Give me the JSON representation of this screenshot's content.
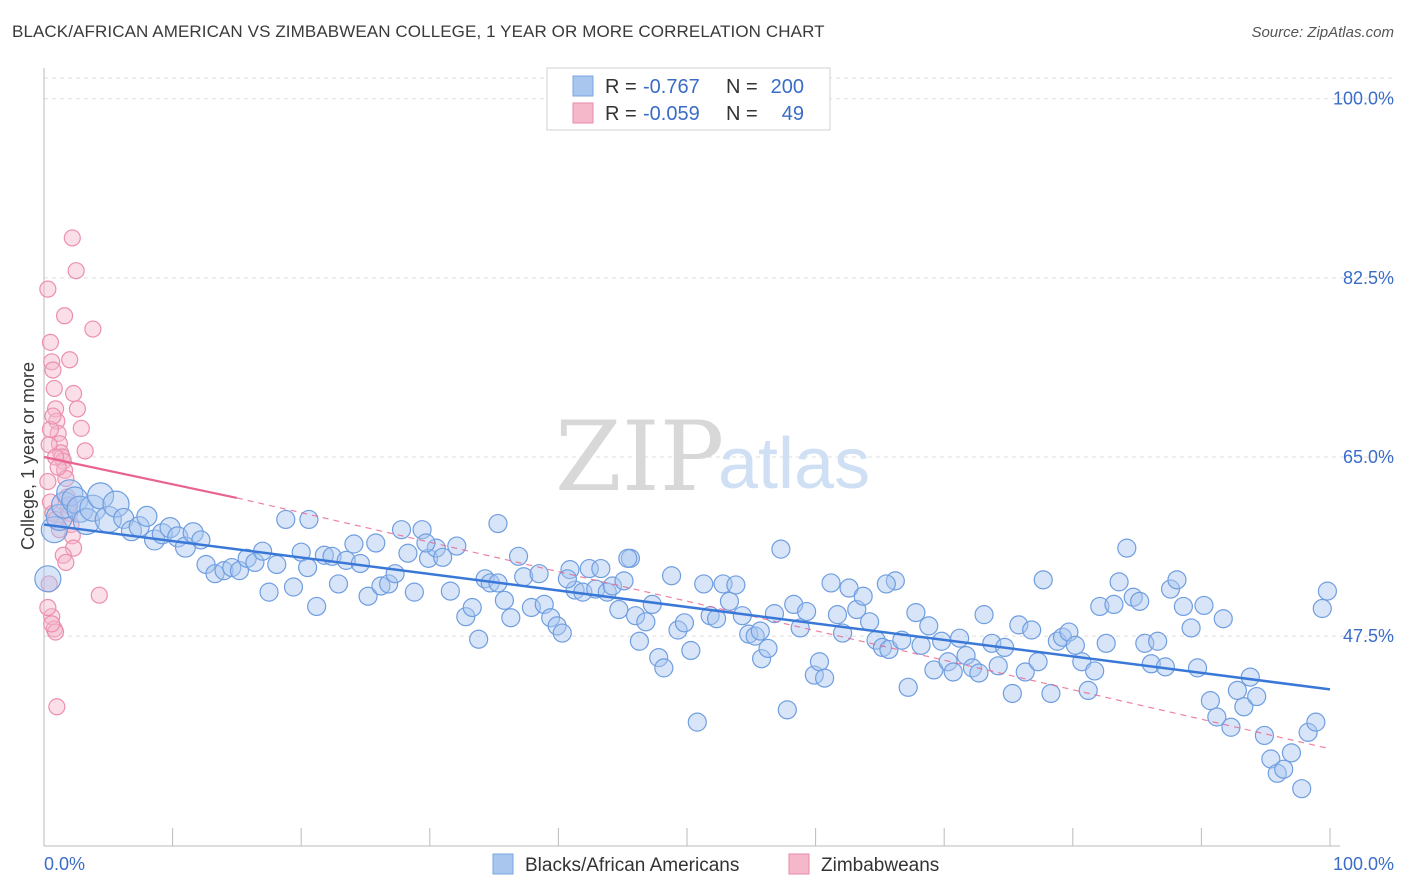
{
  "title": "BLACK/AFRICAN AMERICAN VS ZIMBABWEAN COLLEGE, 1 YEAR OR MORE CORRELATION CHART",
  "source": "Source: ZipAtlas.com",
  "watermark": {
    "part1": "ZIP",
    "part2": "atlas"
  },
  "legend": {
    "rows": [
      {
        "r_label": "R =",
        "r_value": "-0.767",
        "n_label": "N =",
        "n_value": "200",
        "color": "#a9c6ef"
      },
      {
        "r_label": "R =",
        "r_value": "-0.059",
        "n_label": "N =",
        "n_value": "49",
        "color": "#f5b8cb"
      }
    ]
  },
  "bottom_legend": [
    {
      "label": "Blacks/African Americans",
      "color": "#a9c6ef"
    },
    {
      "label": "Zimbabweans",
      "color": "#f5b8cb"
    }
  ],
  "colors": {
    "blue": "#3a78d8",
    "blue_fill": "rgba(169,198,239,0.45)",
    "pink": "#e8648e",
    "pink_fill": "rgba(245,184,203,0.45)",
    "tick": "#3a6cc8"
  },
  "chart_data": {
    "type": "scatter",
    "title": "BLACK/AFRICAN AMERICAN VS ZIMBABWEAN COLLEGE, 1 YEAR OR MORE CORRELATION CHART",
    "xlabel": "",
    "ylabel": "College, 1 year or more",
    "xlim": [
      0,
      100
    ],
    "ylim": [
      27,
      103
    ],
    "x_tick_labels": [
      "0.0%",
      "100.0%"
    ],
    "y_ticks": [
      47.5,
      65.0,
      82.5,
      100.0
    ],
    "y_tick_labels": [
      "47.5%",
      "65.0%",
      "82.5%",
      "100.0%"
    ],
    "series": [
      {
        "name": "Blacks/African Americans",
        "r": -0.767,
        "n": 200,
        "trend": {
          "x": [
            0,
            100
          ],
          "y": [
            58.4,
            42.3
          ]
        },
        "points": [
          [
            0.3,
            53.1
          ],
          [
            0.8,
            57.9
          ],
          [
            1.2,
            59.1
          ],
          [
            1.6,
            60.3
          ],
          [
            2.0,
            61.5
          ],
          [
            2.4,
            60.8
          ],
          [
            2.8,
            59.9
          ],
          [
            3.3,
            58.7
          ],
          [
            3.8,
            60.0
          ],
          [
            4.4,
            61.2
          ],
          [
            5.0,
            58.9
          ],
          [
            5.6,
            60.4
          ],
          [
            6.2,
            59.0
          ],
          [
            6.8,
            57.8
          ],
          [
            7.4,
            58.2
          ],
          [
            8.0,
            59.2
          ],
          [
            8.6,
            56.9
          ],
          [
            9.2,
            57.5
          ],
          [
            9.8,
            58.1
          ],
          [
            10.4,
            57.2
          ],
          [
            11.0,
            56.2
          ],
          [
            11.6,
            57.6
          ],
          [
            12.2,
            56.9
          ],
          [
            12.6,
            54.5
          ],
          [
            13.3,
            53.6
          ],
          [
            14.0,
            53.9
          ],
          [
            14.6,
            54.2
          ],
          [
            15.2,
            53.9
          ],
          [
            15.8,
            55.1
          ],
          [
            16.4,
            54.7
          ],
          [
            17.0,
            55.8
          ],
          [
            17.5,
            51.8
          ],
          [
            18.1,
            54.5
          ],
          [
            18.8,
            58.9
          ],
          [
            19.4,
            52.3
          ],
          [
            20.0,
            55.7
          ],
          [
            20.5,
            54.2
          ],
          [
            21.2,
            50.4
          ],
          [
            21.8,
            55.4
          ],
          [
            22.4,
            55.3
          ],
          [
            22.9,
            52.6
          ],
          [
            23.5,
            54.9
          ],
          [
            24.1,
            56.5
          ],
          [
            24.6,
            54.6
          ],
          [
            25.2,
            51.4
          ],
          [
            25.8,
            56.6
          ],
          [
            26.2,
            52.4
          ],
          [
            26.8,
            52.6
          ],
          [
            27.3,
            53.6
          ],
          [
            27.8,
            57.9
          ],
          [
            28.3,
            55.6
          ],
          [
            28.8,
            51.8
          ],
          [
            29.4,
            57.9
          ],
          [
            29.9,
            55.1
          ],
          [
            30.5,
            56.1
          ],
          [
            31.0,
            55.2
          ],
          [
            31.6,
            51.9
          ],
          [
            32.1,
            56.3
          ],
          [
            32.8,
            49.4
          ],
          [
            33.3,
            50.3
          ],
          [
            33.8,
            47.2
          ],
          [
            34.3,
            53.1
          ],
          [
            34.7,
            52.7
          ],
          [
            35.3,
            52.7
          ],
          [
            35.8,
            51.0
          ],
          [
            36.3,
            49.3
          ],
          [
            36.9,
            55.3
          ],
          [
            37.3,
            53.3
          ],
          [
            37.9,
            50.3
          ],
          [
            38.5,
            53.6
          ],
          [
            38.9,
            50.6
          ],
          [
            39.4,
            49.3
          ],
          [
            39.9,
            48.5
          ],
          [
            40.3,
            47.8
          ],
          [
            40.9,
            54.0
          ],
          [
            41.3,
            52.0
          ],
          [
            41.9,
            51.8
          ],
          [
            42.4,
            54.1
          ],
          [
            42.9,
            52.1
          ],
          [
            43.3,
            54.1
          ],
          [
            43.8,
            51.8
          ],
          [
            44.2,
            52.4
          ],
          [
            44.7,
            50.1
          ],
          [
            45.1,
            52.9
          ],
          [
            45.6,
            55.1
          ],
          [
            46.0,
            49.5
          ],
          [
            46.3,
            47.0
          ],
          [
            46.8,
            48.9
          ],
          [
            47.3,
            50.6
          ],
          [
            47.8,
            45.4
          ],
          [
            48.2,
            44.4
          ],
          [
            48.8,
            53.4
          ],
          [
            49.3,
            48.1
          ],
          [
            49.8,
            48.8
          ],
          [
            50.3,
            46.1
          ],
          [
            50.8,
            39.1
          ],
          [
            51.3,
            52.6
          ],
          [
            51.8,
            49.5
          ],
          [
            52.3,
            49.2
          ],
          [
            52.8,
            52.6
          ],
          [
            53.3,
            50.9
          ],
          [
            53.8,
            52.5
          ],
          [
            54.3,
            49.5
          ],
          [
            54.8,
            47.7
          ],
          [
            55.3,
            47.5
          ],
          [
            55.8,
            45.3
          ],
          [
            56.3,
            46.3
          ],
          [
            56.8,
            49.7
          ],
          [
            57.3,
            56.0
          ],
          [
            57.8,
            40.3
          ],
          [
            58.3,
            50.6
          ],
          [
            58.8,
            48.3
          ],
          [
            59.3,
            49.9
          ],
          [
            59.9,
            43.7
          ],
          [
            60.3,
            45.0
          ],
          [
            60.7,
            43.4
          ],
          [
            61.2,
            52.7
          ],
          [
            61.7,
            49.6
          ],
          [
            62.1,
            47.8
          ],
          [
            62.6,
            52.2
          ],
          [
            63.2,
            50.1
          ],
          [
            63.7,
            51.4
          ],
          [
            64.2,
            48.9
          ],
          [
            64.7,
            47.1
          ],
          [
            65.2,
            46.4
          ],
          [
            65.7,
            46.2
          ],
          [
            66.2,
            52.9
          ],
          [
            66.7,
            47.1
          ],
          [
            67.2,
            42.5
          ],
          [
            67.8,
            49.8
          ],
          [
            68.2,
            46.6
          ],
          [
            68.8,
            48.5
          ],
          [
            69.2,
            44.2
          ],
          [
            69.8,
            47.0
          ],
          [
            70.3,
            45.0
          ],
          [
            70.7,
            44.0
          ],
          [
            71.2,
            47.3
          ],
          [
            71.7,
            45.6
          ],
          [
            72.2,
            44.4
          ],
          [
            72.7,
            43.9
          ],
          [
            73.1,
            49.6
          ],
          [
            73.7,
            46.8
          ],
          [
            74.2,
            44.6
          ],
          [
            74.7,
            46.4
          ],
          [
            75.3,
            41.9
          ],
          [
            75.8,
            48.6
          ],
          [
            76.3,
            44.0
          ],
          [
            76.8,
            48.1
          ],
          [
            77.3,
            45.0
          ],
          [
            77.7,
            53.0
          ],
          [
            78.3,
            41.9
          ],
          [
            78.8,
            47.0
          ],
          [
            79.2,
            47.4
          ],
          [
            79.7,
            47.9
          ],
          [
            80.2,
            46.6
          ],
          [
            80.7,
            45.0
          ],
          [
            81.2,
            42.2
          ],
          [
            81.7,
            44.1
          ],
          [
            82.1,
            50.4
          ],
          [
            82.6,
            46.8
          ],
          [
            83.2,
            50.6
          ],
          [
            83.6,
            52.8
          ],
          [
            84.2,
            56.1
          ],
          [
            84.7,
            51.3
          ],
          [
            85.2,
            50.9
          ],
          [
            85.6,
            46.8
          ],
          [
            86.1,
            44.8
          ],
          [
            86.6,
            47.0
          ],
          [
            87.2,
            44.5
          ],
          [
            87.6,
            52.1
          ],
          [
            88.1,
            53.0
          ],
          [
            88.6,
            50.4
          ],
          [
            89.2,
            48.3
          ],
          [
            89.7,
            44.4
          ],
          [
            90.2,
            50.5
          ],
          [
            90.7,
            41.2
          ],
          [
            91.2,
            39.6
          ],
          [
            91.7,
            49.2
          ],
          [
            92.3,
            38.6
          ],
          [
            92.8,
            42.2
          ],
          [
            93.3,
            40.6
          ],
          [
            93.8,
            43.5
          ],
          [
            94.3,
            41.6
          ],
          [
            94.9,
            37.8
          ],
          [
            95.4,
            35.5
          ],
          [
            95.9,
            34.1
          ],
          [
            96.4,
            34.5
          ],
          [
            97.0,
            36.1
          ],
          [
            97.8,
            32.6
          ],
          [
            98.3,
            38.1
          ],
          [
            98.9,
            39.1
          ],
          [
            99.4,
            50.2
          ],
          [
            99.8,
            51.9
          ],
          [
            40.7,
            53.1
          ],
          [
            55.7,
            48.0
          ],
          [
            65.5,
            52.6
          ],
          [
            20.6,
            58.9
          ],
          [
            29.7,
            56.6
          ],
          [
            45.4,
            55.1
          ],
          [
            35.3,
            58.5
          ]
        ]
      },
      {
        "name": "Zimbabweans",
        "r": -0.059,
        "n": 49,
        "trend": {
          "x": [
            0,
            15
          ],
          "y": [
            65.0,
            61.0
          ],
          "dashed_to": {
            "x": [
              15,
              100
            ],
            "y": [
              61.0,
              36.5
            ]
          }
        },
        "points": [
          [
            0.3,
            81.4
          ],
          [
            0.5,
            76.2
          ],
          [
            0.6,
            74.3
          ],
          [
            0.7,
            73.5
          ],
          [
            0.8,
            71.7
          ],
          [
            0.9,
            69.7
          ],
          [
            1.0,
            68.5
          ],
          [
            1.1,
            67.3
          ],
          [
            1.2,
            66.3
          ],
          [
            1.3,
            65.4
          ],
          [
            1.4,
            65.0
          ],
          [
            1.5,
            64.6
          ],
          [
            1.6,
            63.7
          ],
          [
            1.7,
            62.9
          ],
          [
            1.8,
            61.1
          ],
          [
            1.9,
            60.3
          ],
          [
            2.0,
            59.5
          ],
          [
            2.1,
            58.4
          ],
          [
            2.2,
            57.3
          ],
          [
            2.3,
            56.1
          ],
          [
            0.4,
            52.6
          ],
          [
            0.6,
            49.4
          ],
          [
            0.8,
            48.2
          ],
          [
            0.9,
            47.9
          ],
          [
            1.0,
            40.6
          ],
          [
            2.0,
            74.5
          ],
          [
            2.3,
            71.2
          ],
          [
            2.6,
            69.7
          ],
          [
            2.9,
            67.8
          ],
          [
            3.2,
            65.6
          ],
          [
            2.2,
            86.4
          ],
          [
            2.5,
            83.2
          ],
          [
            3.8,
            77.5
          ],
          [
            4.3,
            51.5
          ],
          [
            1.6,
            78.8
          ],
          [
            0.4,
            66.2
          ],
          [
            0.5,
            67.7
          ],
          [
            0.7,
            69.0
          ],
          [
            0.9,
            65.0
          ],
          [
            1.1,
            64.0
          ],
          [
            0.3,
            62.6
          ],
          [
            0.5,
            60.6
          ],
          [
            0.7,
            59.5
          ],
          [
            0.9,
            58.9
          ],
          [
            1.2,
            57.9
          ],
          [
            1.5,
            55.4
          ],
          [
            1.7,
            54.7
          ],
          [
            0.3,
            50.3
          ],
          [
            0.6,
            48.7
          ]
        ]
      }
    ]
  }
}
